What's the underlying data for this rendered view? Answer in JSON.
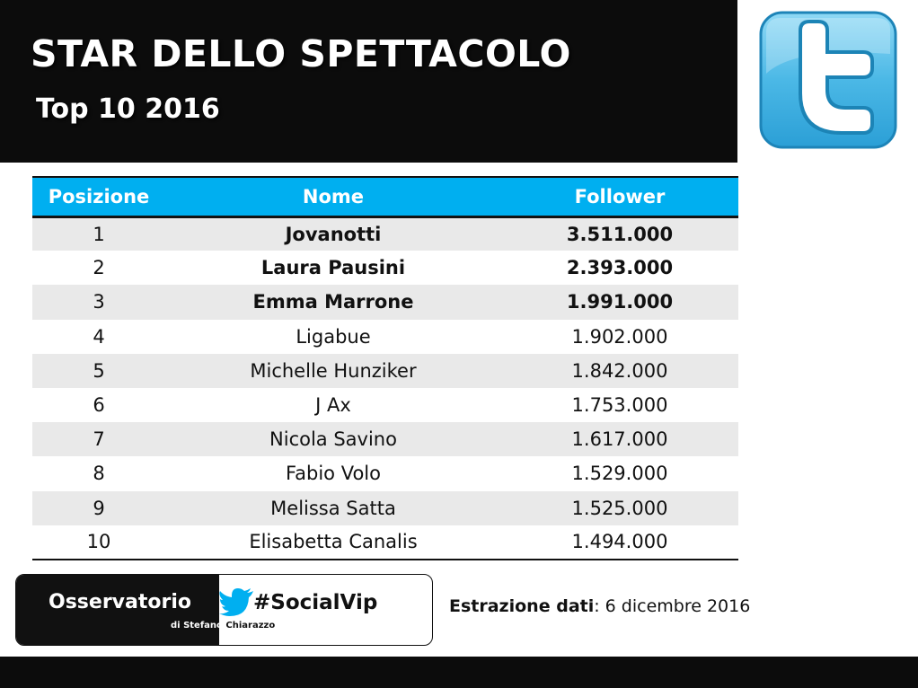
{
  "header": {
    "title": "STAR DELLO SPETTACOLO",
    "subtitle": "Top 10 2016",
    "logo_icon": "twitter-bird-icon"
  },
  "table": {
    "columns": [
      "Posizione",
      "Nome",
      "Follower"
    ],
    "header_color": "#00aff0",
    "stripe_color": "#e9e9e9",
    "rows": [
      {
        "pos": "1",
        "name": "Jovanotti",
        "followers": "3.511.000",
        "bold": true
      },
      {
        "pos": "2",
        "name": "Laura Pausini",
        "followers": "2.393.000",
        "bold": true
      },
      {
        "pos": "3",
        "name": "Emma Marrone",
        "followers": "1.991.000",
        "bold": true
      },
      {
        "pos": "4",
        "name": "Ligabue",
        "followers": "1.902.000",
        "bold": false
      },
      {
        "pos": "5",
        "name": "Michelle Hunziker",
        "followers": "1.842.000",
        "bold": false
      },
      {
        "pos": "6",
        "name": "J Ax",
        "followers": "1.753.000",
        "bold": false
      },
      {
        "pos": "7",
        "name": "Nicola Savino",
        "followers": "1.617.000",
        "bold": false
      },
      {
        "pos": "8",
        "name": "Fabio Volo",
        "followers": "1.529.000",
        "bold": false
      },
      {
        "pos": "9",
        "name": "Melissa Satta",
        "followers": "1.525.000",
        "bold": false
      },
      {
        "pos": "10",
        "name": "Elisabetta Canalis",
        "followers": "1.494.000",
        "bold": false
      }
    ]
  },
  "badge": {
    "left_text": "Osservatorio",
    "sub_text_a": "di Stefano ",
    "sub_text_b": "Chiarazzo",
    "hashtag": "#SocialVip",
    "bird_icon": "twitter-bird-icon"
  },
  "extraction": {
    "label": "Estrazione dati",
    "value": ": 6 dicembre 2016"
  }
}
